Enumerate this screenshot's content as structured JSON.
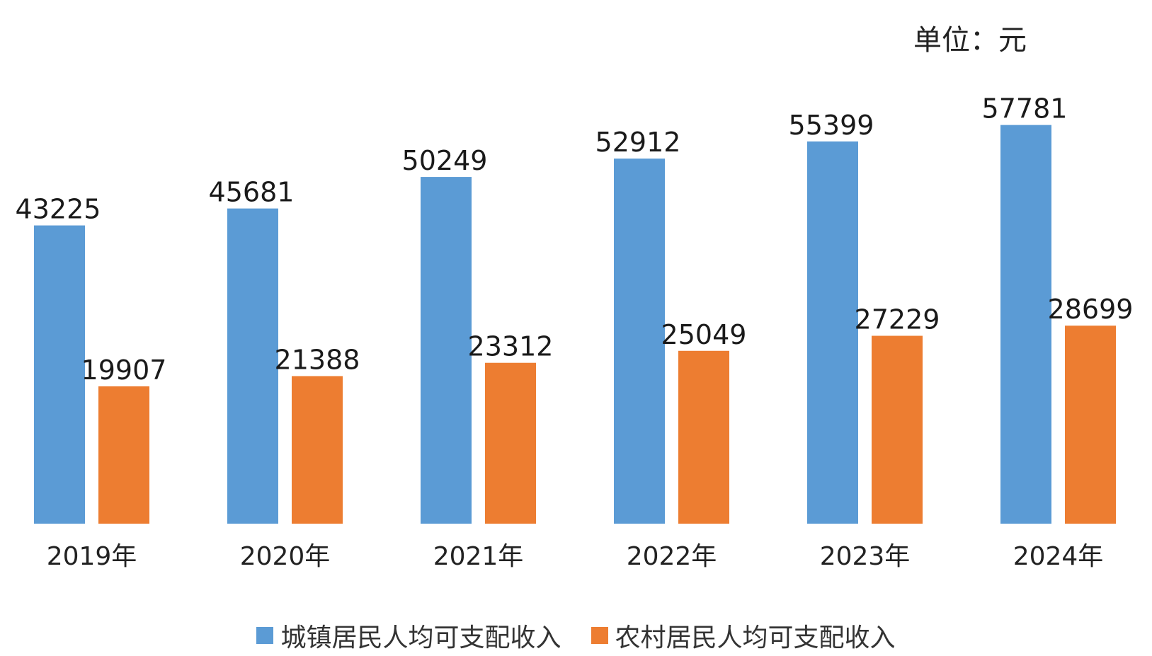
{
  "unit_label": "单位：元",
  "colors": {
    "urban": "#5B9BD5",
    "rural": "#ED7D31"
  },
  "chart_data": {
    "type": "bar",
    "categories": [
      "2019年",
      "2020年",
      "2021年",
      "2022年",
      "2023年",
      "2024年"
    ],
    "series": [
      {
        "name": "城镇居民人均可支配收入",
        "color": "#5B9BD5",
        "values": [
          43225,
          45681,
          50249,
          52912,
          55399,
          57781
        ]
      },
      {
        "name": "农村居民人均可支配收入",
        "color": "#ED7D31",
        "values": [
          19907,
          21388,
          23312,
          25049,
          27229,
          28699
        ]
      }
    ],
    "title": "",
    "xlabel": "",
    "ylabel": "",
    "ylim": [
      0,
      60000
    ],
    "grid": false,
    "legend_position": "bottom"
  }
}
